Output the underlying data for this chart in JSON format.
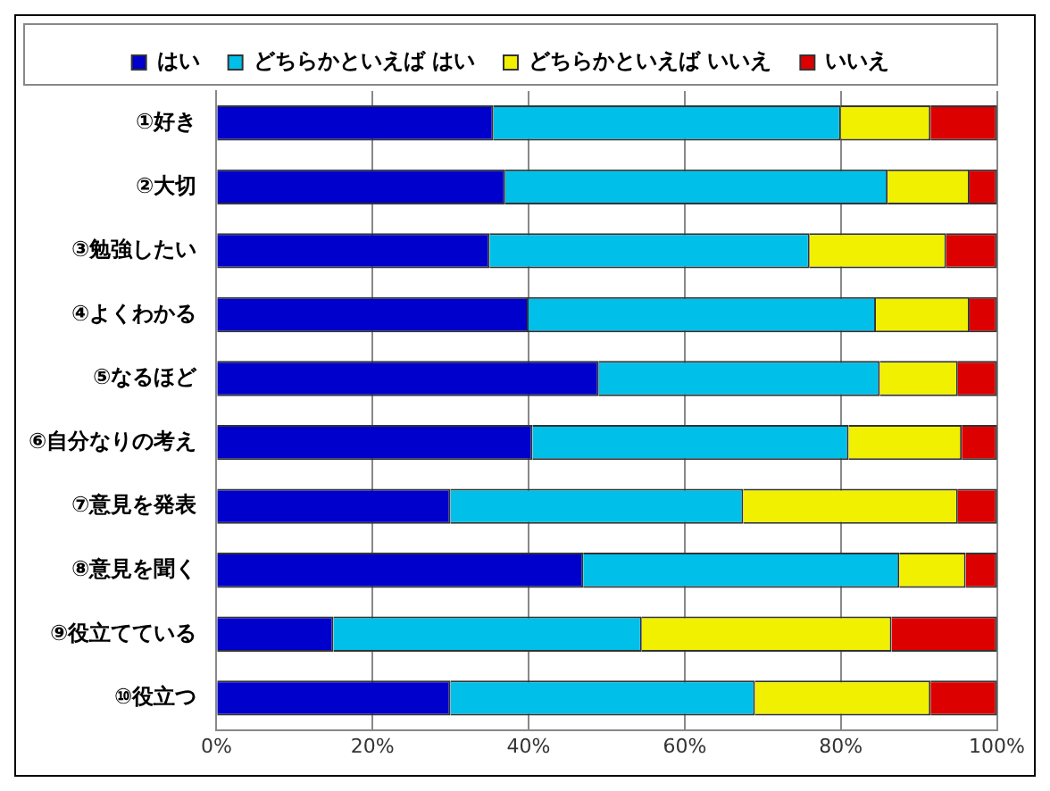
{
  "chart_data": {
    "type": "bar",
    "orientation": "horizontal",
    "stacked": true,
    "categories": [
      "①好き",
      "②大切",
      "③勉強したい",
      "④よくわかる",
      "⑤なるほど",
      "⑥自分なりの考え",
      "⑦意見を発表",
      "⑧意見を聞く",
      "⑨役立てている",
      "⑩役立つ"
    ],
    "series": [
      {
        "name": "はい",
        "color": "#0000cc",
        "values": [
          35.5,
          37,
          35,
          40,
          49,
          40.5,
          30,
          47,
          15,
          30
        ]
      },
      {
        "name": "どちらかといえば はい",
        "color": "#00bfe8",
        "values": [
          44.5,
          49,
          41,
          44.5,
          36,
          40.5,
          37.5,
          40.5,
          39.5,
          39
        ]
      },
      {
        "name": "どちらかといえば いいえ",
        "color": "#f0f000",
        "values": [
          11.5,
          10.5,
          17.5,
          12,
          10,
          14.5,
          27.5,
          8.5,
          32,
          22.5
        ]
      },
      {
        "name": "いいえ",
        "color": "#dd0000",
        "values": [
          8.5,
          3.5,
          6.5,
          3.5,
          5,
          4.5,
          5,
          4,
          13.5,
          8.5
        ]
      }
    ],
    "xlim": [
      0,
      100
    ],
    "xticks": [
      {
        "value": 0,
        "label": "0%"
      },
      {
        "value": 20,
        "label": "20%"
      },
      {
        "value": 40,
        "label": "40%"
      },
      {
        "value": 60,
        "label": "60%"
      },
      {
        "value": 80,
        "label": "80%"
      },
      {
        "value": 100,
        "label": "100%"
      }
    ],
    "grid": "x",
    "legend": "top"
  }
}
